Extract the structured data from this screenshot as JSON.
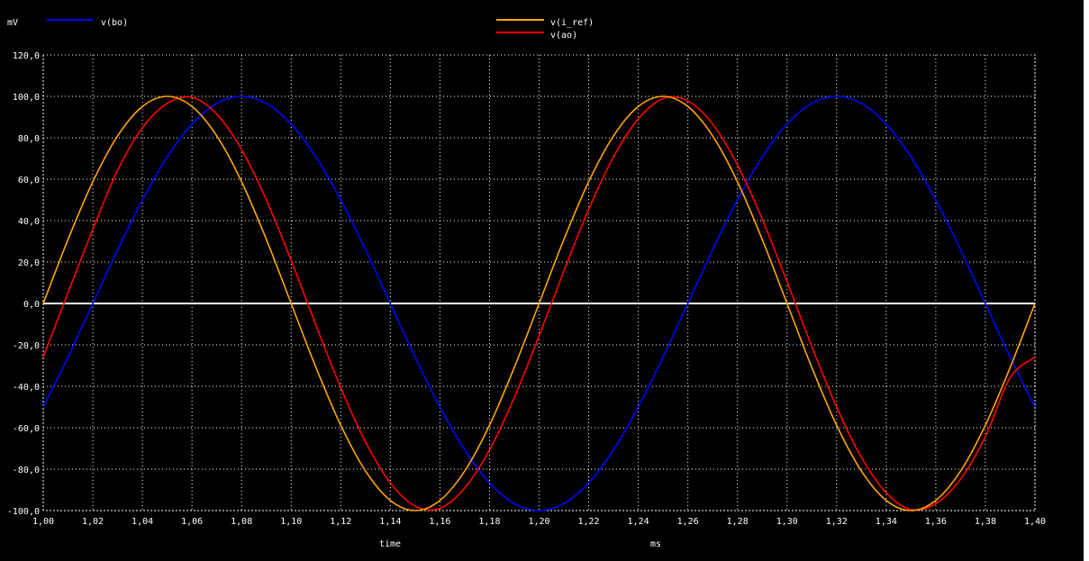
{
  "chart_data": {
    "type": "line",
    "yunit": "mV",
    "xlabel": "time",
    "xunit": "ms",
    "xlim": [
      1.0,
      1.4
    ],
    "ylim": [
      -100,
      120
    ],
    "x_ticks": [
      1.0,
      1.02,
      1.04,
      1.06,
      1.08,
      1.1,
      1.12,
      1.14,
      1.16,
      1.18,
      1.2,
      1.22,
      1.24,
      1.26,
      1.28,
      1.3,
      1.32,
      1.34,
      1.36,
      1.38,
      1.4
    ],
    "x_tick_labels": [
      "1,00",
      "1,02",
      "1,04",
      "1,06",
      "1,08",
      "1,10",
      "1,12",
      "1,14",
      "1,16",
      "1,18",
      "1,20",
      "1,22",
      "1,24",
      "1,26",
      "1,28",
      "1,30",
      "1,32",
      "1,34",
      "1,36",
      "1,38",
      "1,40"
    ],
    "y_ticks": [
      120,
      100,
      80,
      60,
      40,
      20,
      0,
      -20,
      -40,
      -60,
      -80,
      -100
    ],
    "y_tick_labels": [
      "120,0",
      "100,0",
      "80,0",
      "60,0",
      "40,0",
      "20,0",
      "0,0",
      "-20,0",
      "-40,0",
      "-60,0",
      "-80,0",
      "-100,0"
    ],
    "grid": true,
    "series": [
      {
        "name": "v(bo)",
        "color": "#0000ff",
        "legend": "top-left",
        "x": [
          1.0,
          1.01,
          1.02,
          1.03,
          1.04,
          1.05,
          1.06,
          1.07,
          1.08,
          1.09,
          1.1,
          1.11,
          1.12,
          1.13,
          1.14,
          1.15,
          1.16,
          1.17,
          1.18,
          1.19,
          1.2,
          1.21,
          1.22,
          1.23,
          1.24,
          1.25,
          1.26,
          1.27,
          1.28,
          1.29,
          1.3,
          1.31,
          1.32,
          1.33,
          1.34,
          1.35,
          1.36,
          1.37,
          1.38,
          1.39,
          1.4
        ],
        "y": [
          -50,
          -25.9,
          0,
          25.9,
          50,
          70.7,
          86.6,
          96.6,
          100,
          96.6,
          86.6,
          70.7,
          50,
          25.9,
          0,
          -25.9,
          -50,
          -70.7,
          -86.6,
          -96.6,
          -100,
          -96.6,
          -86.6,
          -70.7,
          -50,
          -25.9,
          0,
          25.9,
          50,
          70.7,
          86.6,
          96.6,
          100,
          96.6,
          86.6,
          70.7,
          50,
          25.9,
          0,
          -25.9,
          -50
        ]
      },
      {
        "name": "v(i_ref)",
        "color": "#ffa500",
        "legend": "top-center",
        "x": [
          1.0,
          1.01,
          1.02,
          1.03,
          1.04,
          1.05,
          1.06,
          1.07,
          1.08,
          1.09,
          1.1,
          1.11,
          1.12,
          1.13,
          1.14,
          1.15,
          1.16,
          1.17,
          1.18,
          1.19,
          1.2,
          1.21,
          1.22,
          1.23,
          1.24,
          1.25,
          1.26,
          1.27,
          1.28,
          1.29,
          1.3,
          1.31,
          1.32,
          1.33,
          1.34,
          1.35,
          1.36,
          1.37,
          1.38,
          1.39,
          1.4
        ],
        "y": [
          0,
          30.9,
          58.8,
          80.9,
          95.1,
          100,
          95.1,
          80.9,
          58.8,
          30.9,
          0,
          -30.9,
          -58.8,
          -80.9,
          -95.1,
          -100,
          -95.1,
          -80.9,
          -58.8,
          -30.9,
          0,
          30.9,
          58.8,
          80.9,
          95.1,
          100,
          95.1,
          80.9,
          58.8,
          30.9,
          0,
          -30.9,
          -58.8,
          -80.9,
          -95.1,
          -100,
          -95.1,
          -80.9,
          -58.8,
          -30.9,
          0
        ]
      },
      {
        "name": "v(ao)",
        "color": "#ff0000",
        "legend": "top-center",
        "x": [
          1.0,
          1.01,
          1.02,
          1.03,
          1.04,
          1.05,
          1.06,
          1.07,
          1.08,
          1.09,
          1.1,
          1.11,
          1.12,
          1.13,
          1.14,
          1.15,
          1.16,
          1.17,
          1.18,
          1.19,
          1.2,
          1.21,
          1.22,
          1.23,
          1.24,
          1.25,
          1.26,
          1.27,
          1.28,
          1.29,
          1.3,
          1.31,
          1.32,
          1.33,
          1.34,
          1.35,
          1.36,
          1.37,
          1.38,
          1.39,
          1.4
        ],
        "y": [
          -25.9,
          5.2,
          35.8,
          64.3,
          84.8,
          96.6,
          99.5,
          91.4,
          74.3,
          50,
          20.8,
          -10.5,
          -40.7,
          -66.9,
          -86.6,
          -97.8,
          -98.9,
          -89.1,
          -70.7,
          -45.4,
          -15.6,
          15.6,
          45.4,
          70.7,
          89.1,
          98.9,
          97.8,
          86.6,
          66.9,
          40.7,
          10.5,
          -20.8,
          -50,
          -74.3,
          -91.4,
          -99.5,
          -96.6,
          -84.8,
          -64.3,
          -35.8,
          -25.9
        ]
      }
    ]
  }
}
